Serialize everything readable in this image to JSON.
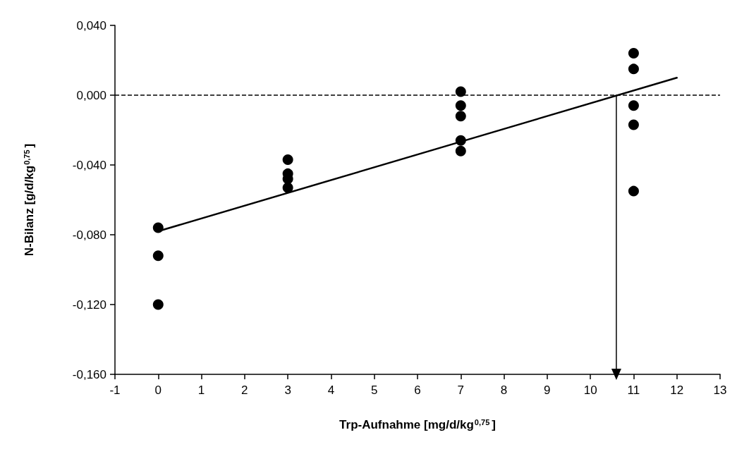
{
  "chart_data": {
    "type": "scatter",
    "xlabel": "Trp-Aufnahme [mg/d/kg$^{0,75}$]",
    "ylabel": "N-Bilanz [g/d/kg$^{0,75}$]",
    "series": [
      {
        "color": "#000000",
        "marker": "circle",
        "x": [
          0,
          0,
          0,
          3,
          3,
          3,
          3,
          7,
          7,
          7,
          7,
          7,
          11,
          11,
          11,
          11,
          11
        ],
        "values": [
          -0.076,
          -0.092,
          -0.12,
          -0.037,
          -0.045,
          -0.048,
          -0.053,
          0.002,
          -0.006,
          -0.012,
          -0.026,
          -0.032,
          0.024,
          0.015,
          -0.006,
          -0.017,
          -0.055
        ]
      },
      {
        "type": "line",
        "color": "#000000",
        "marker": "none",
        "line_style": "solid",
        "x": [
          0,
          12
        ],
        "values": [
          -0.078,
          0.01
        ]
      },
      {
        "type": "line",
        "color": "#000000",
        "marker": "triangle",
        "line_style": "solid",
        "x": [
          10.6,
          10.6
        ],
        "values": [
          0,
          -0.16
        ]
      }
    ],
    "ref_lines": [
      {
        "axis": "y",
        "value": 0,
        "color": "#000000",
        "line_style": "dashed"
      }
    ],
    "xlim": [
      -1,
      13
    ],
    "xticks": [
      -1,
      0,
      1,
      2,
      3,
      4,
      5,
      6,
      7,
      8,
      9,
      10,
      11,
      12,
      13
    ],
    "ylim": [
      -0.16,
      0.04
    ],
    "yticks": [
      {
        "value": -0.16,
        "label": "-0,160"
      },
      {
        "value": -0.12,
        "label": "-0,120"
      },
      {
        "value": -0.08,
        "label": "-0,080"
      },
      {
        "value": -0.04,
        "label": "-0,040"
      },
      {
        "value": 0,
        "label": "0,000"
      },
      {
        "value": 0.04,
        "label": "0,040"
      }
    ],
    "grid": false
  }
}
